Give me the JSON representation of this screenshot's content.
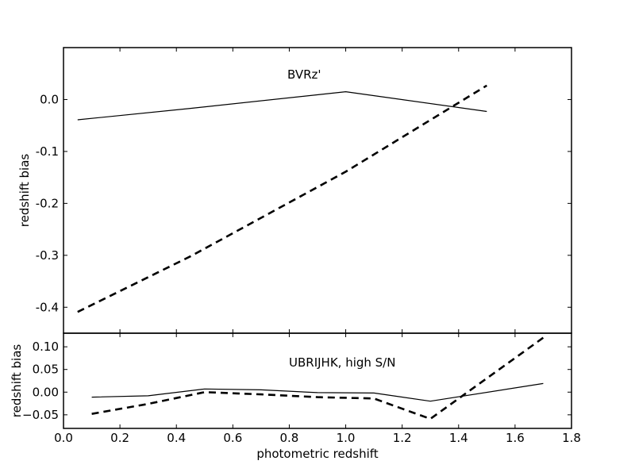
{
  "chart_data": [
    {
      "type": "line",
      "annotation": "BVRz'",
      "title": "",
      "xlabel": "",
      "ylabel": "redshift bias",
      "xlim": [
        0.0,
        1.8
      ],
      "ylim": [
        -0.45,
        0.1
      ],
      "x_ticks": [
        0.0,
        0.2,
        0.4,
        0.6,
        0.8,
        1.0,
        1.2,
        1.4,
        1.6,
        1.8
      ],
      "y_ticks": [
        -0.4,
        -0.3,
        -0.2,
        -0.1,
        0.0
      ],
      "y_tick_labels": [
        "-0.4",
        "-0.3",
        "-0.2",
        "-0.1",
        "0.0"
      ],
      "grid": false,
      "legend": "none",
      "series": [
        {
          "style": "solid",
          "color": "#000000",
          "x": [
            0.05,
            0.45,
            1.0,
            1.5
          ],
          "y": [
            -0.039,
            -0.017,
            0.015,
            -0.023
          ]
        },
        {
          "style": "dashed",
          "color": "#000000",
          "x": [
            0.05,
            0.45,
            1.0,
            1.5
          ],
          "y": [
            -0.409,
            -0.302,
            -0.139,
            0.027
          ]
        }
      ]
    },
    {
      "type": "line",
      "annotation": "UBRIJHK, high S/N",
      "title": "",
      "xlabel": "photometric redshift",
      "ylabel": "redshift bias",
      "xlim": [
        0.0,
        1.8
      ],
      "ylim": [
        -0.08,
        0.13
      ],
      "x_ticks": [
        0.0,
        0.2,
        0.4,
        0.6,
        0.8,
        1.0,
        1.2,
        1.4,
        1.6,
        1.8
      ],
      "x_tick_labels": [
        "0.0",
        "0.2",
        "0.4",
        "0.6",
        "0.8",
        "1.0",
        "1.2",
        "1.4",
        "1.6",
        "1.8"
      ],
      "y_ticks": [
        -0.05,
        0.0,
        0.05,
        0.1
      ],
      "y_tick_labels": [
        "−0.05",
        "0.00",
        "0.05",
        "0.10"
      ],
      "grid": false,
      "legend": "none",
      "series": [
        {
          "style": "solid",
          "color": "#000000",
          "x": [
            0.1,
            0.3,
            0.5,
            0.7,
            0.9,
            1.1,
            1.3,
            1.7
          ],
          "y": [
            -0.011,
            -0.008,
            0.007,
            0.005,
            -0.001,
            -0.002,
            -0.02,
            0.019
          ]
        },
        {
          "style": "dashed",
          "color": "#000000",
          "x": [
            0.1,
            0.3,
            0.5,
            0.7,
            0.9,
            1.1,
            1.3,
            1.7
          ],
          "y": [
            -0.048,
            -0.026,
            0.0,
            -0.005,
            -0.011,
            -0.014,
            -0.059,
            0.12
          ]
        }
      ]
    }
  ]
}
